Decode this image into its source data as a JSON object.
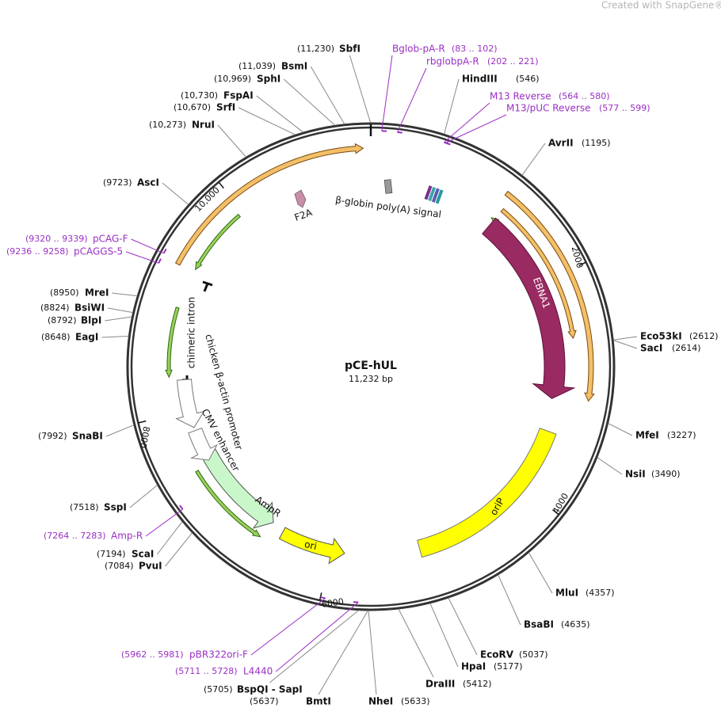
{
  "watermark": "Created with SnapGene®",
  "plasmid": {
    "name": "pCE-hUL",
    "size": "11,232 bp"
  },
  "sites": [
    {
      "name": "SbfI",
      "position": "(11,230)"
    },
    {
      "name": "BsmI",
      "position": "(11,039)"
    },
    {
      "name": "SphI",
      "position": "(10,969)"
    },
    {
      "name": "FspAI",
      "position": "(10,730)"
    },
    {
      "name": "SrfI",
      "position": "(10,670)"
    },
    {
      "name": "NruI",
      "position": "(10,273)"
    },
    {
      "name": "AscI",
      "position": "(9723)"
    },
    {
      "name": "MreI",
      "position": "(8950)"
    },
    {
      "name": "BsiWI",
      "position": "(8824)"
    },
    {
      "name": "BlpI",
      "position": "(8792)"
    },
    {
      "name": "EagI",
      "position": "(8648)"
    },
    {
      "name": "SnaBI",
      "position": "(7992)"
    },
    {
      "name": "SspI",
      "position": "(7518)"
    },
    {
      "name": "ScaI",
      "position": "(7194)"
    },
    {
      "name": "PvuI",
      "position": "(7084)"
    },
    {
      "name": "BspQI - SapI",
      "position": "(5705)"
    },
    {
      "name": "BmtI",
      "position": "(5637)"
    },
    {
      "name": "HindIII",
      "position": "(546)"
    },
    {
      "name": "AvrII",
      "position": "(1195)"
    },
    {
      "name": "Eco53kI",
      "position": "(2612)"
    },
    {
      "name": "SacI",
      "position": "(2614)"
    },
    {
      "name": "MfeI",
      "position": "(3227)"
    },
    {
      "name": "NsiI",
      "position": "(3490)"
    },
    {
      "name": "MluI",
      "position": "(4357)"
    },
    {
      "name": "BsaBI",
      "position": "(4635)"
    },
    {
      "name": "EcoRV",
      "position": "(5037)"
    },
    {
      "name": "HpaI",
      "position": "(5177)"
    },
    {
      "name": "DraIII",
      "position": "(5412)"
    },
    {
      "name": "NheI",
      "position": "(5633)"
    }
  ],
  "primers": [
    {
      "name": "Bglob-pA-R",
      "range": "(83 .. 102)"
    },
    {
      "name": "rbglobpA-R",
      "range": "(202 .. 221)"
    },
    {
      "name": "M13 Reverse",
      "range": "(564 .. 580)"
    },
    {
      "name": "M13/pUC Reverse",
      "range": "(577 .. 599)"
    },
    {
      "name": "pCAG-F",
      "range": "(9320 .. 9339)"
    },
    {
      "name": "pCAGGS-5",
      "range": "(9236 .. 9258)"
    },
    {
      "name": "Amp-R",
      "range": "(7264 .. 7283)"
    },
    {
      "name": "pBR322ori-F",
      "range": "(5962 .. 5981)"
    },
    {
      "name": "L4440",
      "range": "(5711 .. 5728)"
    }
  ],
  "features": [
    "F2A",
    "β-globin poly(A) signal",
    "EBNA1",
    "chimeric intron",
    "chicken β-actin promoter",
    "CMV enhancer",
    "AmpR",
    "ori",
    "oriP"
  ],
  "ticks": [
    "2000",
    "4000",
    "6000",
    "8000",
    "10,000"
  ]
}
